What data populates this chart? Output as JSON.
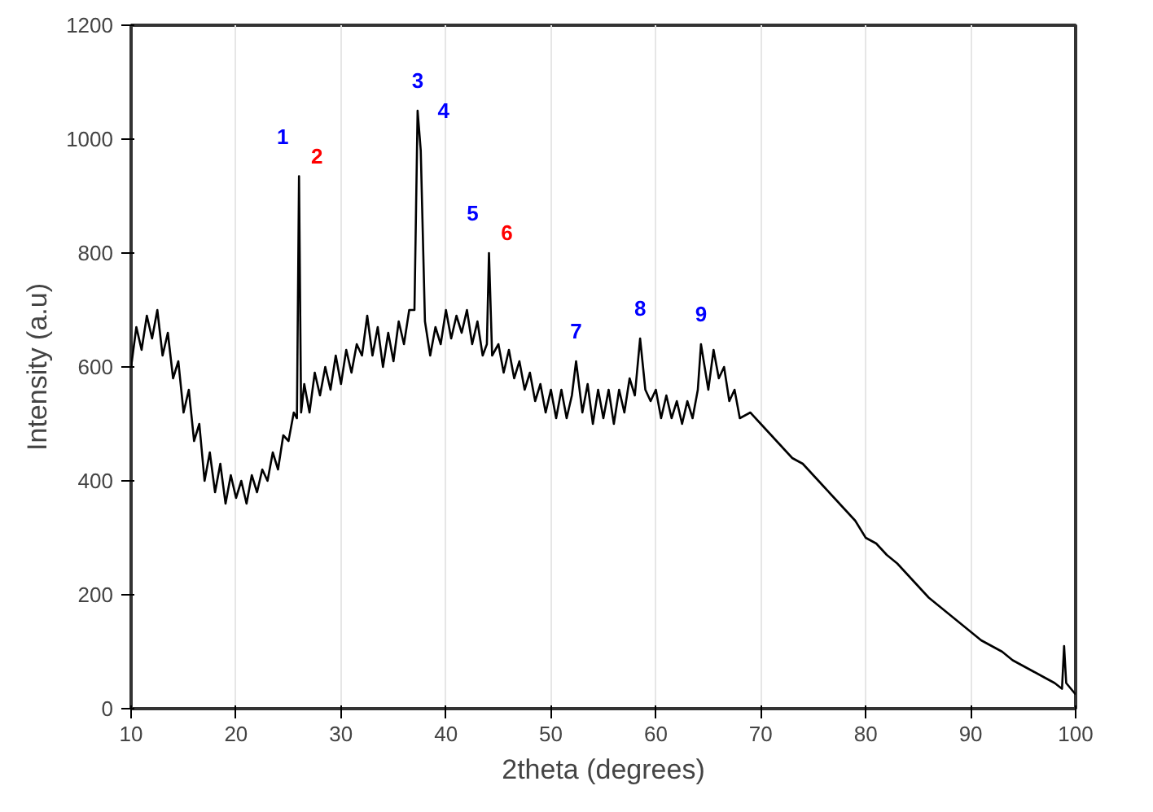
{
  "chart_data": {
    "type": "line",
    "xlabel": "2theta (degrees)",
    "ylabel": "Intensity (a.u)",
    "xlim": [
      10,
      100
    ],
    "ylim": [
      0,
      1200
    ],
    "xticks": [
      10,
      20,
      30,
      40,
      50,
      60,
      70,
      80,
      90,
      100
    ],
    "yticks": [
      0,
      200,
      400,
      600,
      800,
      1000,
      1200
    ],
    "grid": "x",
    "marker": "none",
    "line_style": "solid",
    "series": [
      {
        "color": "#000000",
        "x": [
          10,
          10.5,
          11,
          11.5,
          12,
          12.5,
          13,
          13.5,
          14,
          14.5,
          15,
          15.5,
          16,
          16.5,
          17,
          17.5,
          18,
          18.5,
          19,
          19.5,
          20,
          20.5,
          21,
          21.5,
          22,
          22.5,
          23,
          23.5,
          24,
          24.5,
          25,
          25.5,
          25.8,
          26.0,
          26.2,
          26.5,
          27,
          27.5,
          28,
          28.5,
          29,
          29.5,
          30,
          30.5,
          31,
          31.5,
          32,
          32.5,
          33,
          33.5,
          34,
          34.5,
          35,
          35.5,
          36,
          36.5,
          37,
          37.3,
          37.6,
          38,
          38.5,
          39,
          39.5,
          40,
          40.5,
          41,
          41.5,
          42,
          42.5,
          43,
          43.5,
          43.9,
          44.1,
          44.4,
          45,
          45.5,
          46,
          46.5,
          47,
          47.5,
          48,
          48.5,
          49,
          49.5,
          50,
          50.5,
          51,
          51.5,
          52,
          52.4,
          53,
          53.5,
          54,
          54.5,
          55,
          55.5,
          56,
          56.5,
          57,
          57.5,
          58,
          58.5,
          59,
          59.5,
          60,
          60.5,
          61,
          61.5,
          62,
          62.5,
          63,
          63.5,
          64,
          64.3,
          65,
          65.5,
          66,
          66.5,
          67,
          67.5,
          68,
          69,
          70,
          71,
          72,
          73,
          74,
          75,
          76,
          77,
          78,
          79,
          80,
          81,
          82,
          83,
          84,
          85,
          86,
          87,
          88,
          89,
          90,
          91,
          92,
          93,
          94,
          95,
          96,
          97,
          98,
          98.7,
          98.9,
          99.1,
          100
        ],
        "values": [
          600,
          670,
          630,
          690,
          650,
          700,
          620,
          660,
          580,
          610,
          520,
          560,
          470,
          500,
          400,
          450,
          380,
          430,
          360,
          410,
          370,
          400,
          360,
          410,
          380,
          420,
          400,
          450,
          420,
          480,
          470,
          520,
          510,
          935,
          520,
          570,
          520,
          590,
          550,
          600,
          560,
          620,
          570,
          630,
          590,
          640,
          620,
          690,
          620,
          670,
          600,
          660,
          610,
          680,
          640,
          700,
          700,
          1050,
          980,
          680,
          620,
          670,
          640,
          700,
          650,
          690,
          660,
          700,
          640,
          680,
          620,
          640,
          800,
          620,
          640,
          590,
          630,
          580,
          610,
          560,
          590,
          540,
          570,
          520,
          560,
          510,
          560,
          510,
          550,
          610,
          520,
          570,
          500,
          560,
          510,
          560,
          500,
          560,
          520,
          580,
          550,
          650,
          560,
          540,
          560,
          510,
          550,
          510,
          540,
          500,
          540,
          510,
          560,
          640,
          560,
          630,
          580,
          600,
          540,
          560,
          510,
          520,
          500,
          480,
          460,
          440,
          430,
          410,
          390,
          370,
          350,
          330,
          300,
          290,
          270,
          255,
          235,
          215,
          195,
          180,
          165,
          150,
          135,
          120,
          110,
          100,
          85,
          75,
          65,
          55,
          45,
          35,
          110,
          45,
          25
        ]
      }
    ],
    "annotations": [
      {
        "text": "1",
        "x": 26.0,
        "y": 935
      },
      {
        "text": "2",
        "x": 26.0,
        "y": 935
      },
      {
        "text": "3",
        "x": 37.3,
        "y": 1050
      },
      {
        "text": "4",
        "x": 37.6,
        "y": 980
      },
      {
        "text": "5",
        "x": 44.1,
        "y": 800
      },
      {
        "text": "6",
        "x": 44.1,
        "y": 800
      },
      {
        "text": "7",
        "x": 52.4,
        "y": 610
      },
      {
        "text": "8",
        "x": 58.5,
        "y": 650
      },
      {
        "text": "9",
        "x": 64.3,
        "y": 640
      }
    ]
  }
}
